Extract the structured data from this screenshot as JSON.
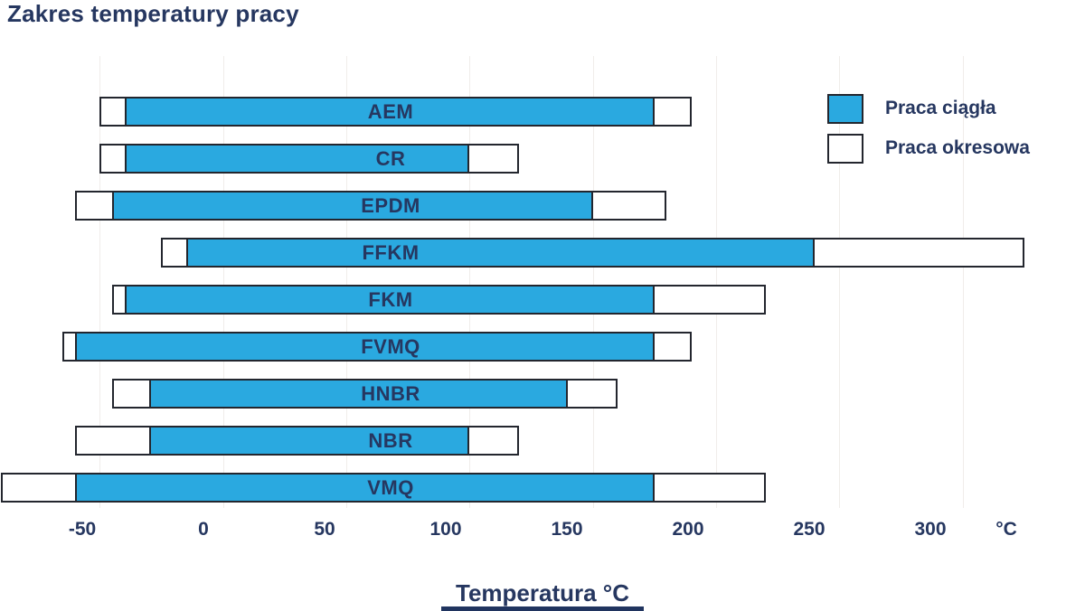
{
  "title": "Zakres temperatury pracy",
  "legend": {
    "items": [
      {
        "label": "Praca ciągła",
        "color": "#2aa9e0"
      },
      {
        "label": "Praca okresowa",
        "color": "#ffffff"
      }
    ]
  },
  "axis": {
    "unit_label": "°C",
    "xlabel": "Temperatura °C"
  },
  "chart_data": {
    "type": "bar",
    "subtype": "horizontal-range-bars",
    "title": "Zakres temperatury pracy",
    "xlabel": "Temperatura °C",
    "categories": [
      "AEM",
      "CR",
      "EPDM",
      "FFKM",
      "FKM",
      "FVMQ",
      "HNBR",
      "NBR",
      "VMQ"
    ],
    "series": [
      {
        "name": "Praca okresowa",
        "style": "white-outlined",
        "ranges_c": [
          [
            -50,
            190
          ],
          [
            -50,
            120
          ],
          [
            -60,
            180
          ],
          [
            -25,
            325
          ],
          [
            -45,
            220
          ],
          [
            -65,
            190
          ],
          [
            -45,
            160
          ],
          [
            -60,
            120
          ],
          [
            -90,
            220
          ]
        ]
      },
      {
        "name": "Praca ciągła",
        "style": "blue-filled",
        "ranges_c": [
          [
            -40,
            175
          ],
          [
            -40,
            100
          ],
          [
            -45,
            150
          ],
          [
            -15,
            240
          ],
          [
            -40,
            175
          ],
          [
            -60,
            175
          ],
          [
            -30,
            140
          ],
          [
            -30,
            100
          ],
          [
            -60,
            175
          ]
        ]
      }
    ],
    "xticks": [
      -50,
      0,
      50,
      100,
      150,
      200,
      250,
      300
    ],
    "xtick_unit_label": "°C",
    "xlim": [
      -90,
      350
    ],
    "grid": true,
    "legend_position": "top-right",
    "colors": {
      "continuous": "#2aa9e0",
      "intermittent": "#ffffff",
      "outline": "#23262e",
      "text": "#263760"
    }
  }
}
